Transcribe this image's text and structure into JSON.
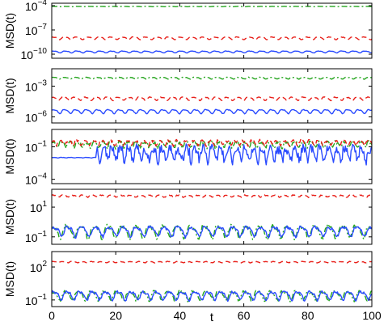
{
  "figure": {
    "xlabel": "t",
    "xticks": [
      "0",
      "20",
      "40",
      "60",
      "80",
      "100"
    ],
    "ylabel": "MSD(t)"
  },
  "colors": {
    "blue": "#2a4bff",
    "red": "#e8201a",
    "green": "#25a51e"
  },
  "chart_data": [
    {
      "type": "line",
      "x_range": [
        0,
        100
      ],
      "ylabel": "MSD(t)",
      "yscale": "log",
      "ylim_log10": [
        -10.5,
        -3.7
      ],
      "ytick_labels": [
        {
          "base": "10",
          "exp": "−4"
        },
        {
          "base": "10",
          "exp": "−7"
        },
        {
          "base": "10",
          "exp": "−10"
        }
      ],
      "ytick_values_log10": [
        -4,
        -7,
        -10
      ],
      "series": [
        {
          "color": "blue",
          "style": "solid",
          "level_log10": -9.7,
          "amp": 0.1,
          "noise": 0.02,
          "period": 3.6,
          "phase": 0.3,
          "ratio": 1.0,
          "seed": 11
        },
        {
          "color": "red",
          "style": "dashed",
          "level_log10": -8.0,
          "amp": 0.15,
          "noise": 0.02,
          "period": 3.6,
          "phase": 0.6,
          "ratio": 1.0,
          "seed": 12
        },
        {
          "color": "green",
          "style": "dashdot",
          "level_log10": -4.1,
          "amp": 0.02,
          "noise": 0.0,
          "period": 3.6,
          "phase": 0.0,
          "ratio": 1.0,
          "seed": 13
        }
      ]
    },
    {
      "type": "line",
      "x_range": [
        0,
        100
      ],
      "ylabel": "MSD(t)",
      "yscale": "log",
      "ylim_log10": [
        -6.6,
        -1.3
      ],
      "ytick_labels": [
        {
          "base": "10",
          "exp": "−3"
        },
        {
          "base": "10",
          "exp": "−6"
        }
      ],
      "ytick_values_log10": [
        -3,
        -6
      ],
      "series": [
        {
          "color": "blue",
          "style": "solid",
          "level_log10": -5.45,
          "amp": 0.18,
          "noise": 0.03,
          "period": 3.4,
          "phase": 0.2,
          "ratio": 1.0,
          "seed": 21
        },
        {
          "color": "red",
          "style": "dashed",
          "level_log10": -4.2,
          "amp": 0.15,
          "noise": 0.03,
          "period": 3.4,
          "phase": 0.9,
          "ratio": 1.0,
          "seed": 22
        },
        {
          "color": "green",
          "style": "dashdot",
          "level_log10": -2.2,
          "amp": 0.08,
          "noise": 0.02,
          "period": 3.4,
          "phase": 0.4,
          "ratio": 1.0,
          "seed": 23
        }
      ]
    },
    {
      "type": "line",
      "x_range": [
        0,
        100
      ],
      "ylabel": "MSD(t)",
      "yscale": "log",
      "ylim_log10": [
        -4.4,
        0.6
      ],
      "ytick_labels": [
        {
          "base": "10",
          "exp": "−1"
        },
        {
          "base": "10",
          "exp": "−4"
        }
      ],
      "ytick_values_log10": [
        -1,
        -4
      ],
      "series": [
        {
          "color": "blue",
          "style": "solid",
          "level_log10": -1.6,
          "amp": 0.55,
          "noise": 0.45,
          "period": 2.6,
          "phase": 0.1,
          "ratio": 1.0,
          "seed": 31,
          "quiet_until": 14,
          "quiet_level_log10": -2.0
        },
        {
          "color": "green",
          "style": "dashdot",
          "level_log10": -0.75,
          "amp": 0.25,
          "noise": 0.15,
          "period": 2.6,
          "phase": 0.5,
          "ratio": 1.0,
          "seed": 33
        },
        {
          "color": "red",
          "style": "dashed",
          "level_log10": -0.6,
          "amp": 0.2,
          "noise": 0.12,
          "period": 2.6,
          "phase": 1.2,
          "ratio": 1.0,
          "seed": 32
        }
      ]
    },
    {
      "type": "line",
      "x_range": [
        0,
        100
      ],
      "ylabel": "MSD(t)",
      "yscale": "log",
      "ylim_log10": [
        -1.5,
        2.2
      ],
      "ytick_labels": [
        {
          "base": "10",
          "exp": "1"
        },
        {
          "base": "10",
          "exp": "−1"
        }
      ],
      "ytick_values_log10": [
        1,
        -1
      ],
      "series": [
        {
          "color": "red",
          "style": "dashed",
          "level_log10": 1.75,
          "amp": 0.06,
          "noise": 0.03,
          "period": 3.0,
          "phase": 0.2,
          "ratio": 1.0,
          "seed": 41
        },
        {
          "color": "green",
          "style": "dashdot",
          "level_log10": -0.6,
          "amp": 0.38,
          "noise": 0.12,
          "period": 4.3,
          "phase": 0.8,
          "ratio": 1.0,
          "seed": 43
        },
        {
          "color": "blue",
          "style": "solid",
          "level_log10": -0.6,
          "amp": 0.3,
          "noise": 0.1,
          "period": 4.3,
          "phase": 0.3,
          "ratio": 1.0,
          "seed": 42
        }
      ]
    },
    {
      "type": "line",
      "x_range": [
        0,
        100
      ],
      "ylabel": "MSD(t)",
      "yscale": "log",
      "ylim_log10": [
        -1.6,
        3.4
      ],
      "ytick_labels": [
        {
          "base": "10",
          "exp": "2"
        },
        {
          "base": "10",
          "exp": "−1"
        }
      ],
      "ytick_values_log10": [
        2,
        -1
      ],
      "series": [
        {
          "color": "red",
          "style": "dashed",
          "level_log10": 2.45,
          "amp": 0.05,
          "noise": 0.02,
          "period": 3.0,
          "phase": 0.5,
          "ratio": 1.0,
          "seed": 51
        },
        {
          "color": "green",
          "style": "dashdot",
          "level_log10": -0.55,
          "amp": 0.38,
          "noise": 0.12,
          "period": 4.0,
          "phase": 0.9,
          "ratio": 1.0,
          "seed": 53
        },
        {
          "color": "blue",
          "style": "solid",
          "level_log10": -0.55,
          "amp": 0.35,
          "noise": 0.1,
          "period": 4.0,
          "phase": 0.2,
          "ratio": 1.0,
          "seed": 52
        }
      ]
    }
  ]
}
